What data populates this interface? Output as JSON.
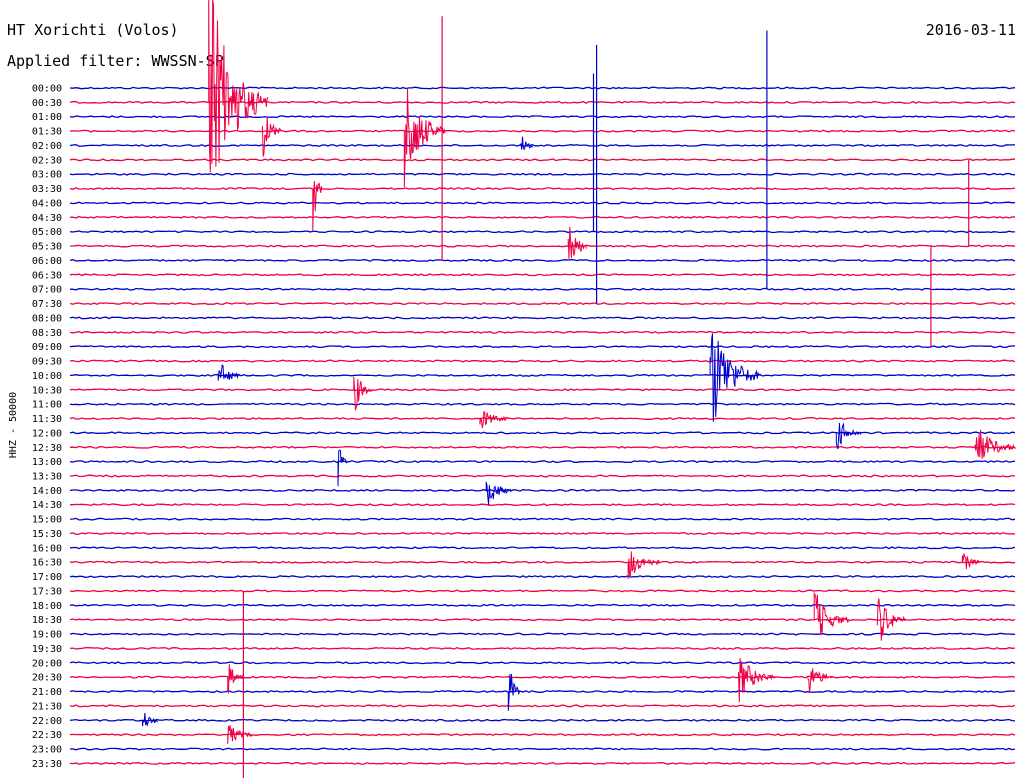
{
  "header": {
    "station": "HT Xorichti (Volos)",
    "filter": "Applied filter: WWSSN-SP",
    "date": "2016-03-11"
  },
  "colors": {
    "trace_a": "#0000cc",
    "trace_b": "#ee0044",
    "background": "#ffffff",
    "text": "#000000"
  },
  "chart_data": {
    "type": "line",
    "title": "HT Xorichti (Volos)",
    "subtitle": "Applied filter: WWSSN-SP",
    "ylabel": "HHZ - 50000",
    "xlabel": "",
    "grid": false,
    "legend": "none",
    "rows": [
      "00:00",
      "00:30",
      "01:00",
      "01:30",
      "02:00",
      "02:30",
      "03:00",
      "03:30",
      "04:00",
      "04:30",
      "05:00",
      "05:30",
      "06:00",
      "06:30",
      "07:00",
      "07:30",
      "08:00",
      "08:30",
      "09:00",
      "09:30",
      "10:00",
      "10:30",
      "11:00",
      "11:30",
      "12:00",
      "12:30",
      "13:00",
      "13:30",
      "14:00",
      "14:30",
      "15:00",
      "15:30",
      "16:00",
      "16:30",
      "17:00",
      "17:30",
      "18:00",
      "18:30",
      "19:00",
      "19:30",
      "20:00",
      "20:30",
      "21:00",
      "21:30",
      "22:00",
      "22:30",
      "23:00",
      "23:30"
    ],
    "x_range_minutes": [
      0,
      30
    ],
    "events": [
      {
        "row": 1,
        "minute": 4.4,
        "amp": 20,
        "dur": 1.9
      },
      {
        "row": 3,
        "minute": 10.6,
        "amp": 10,
        "dur": 1.3
      },
      {
        "row": 3,
        "minute": 6.1,
        "amp": 5,
        "dur": 0.6
      },
      {
        "row": 4,
        "minute": 14.3,
        "amp": 3,
        "dur": 0.4
      },
      {
        "row": 7,
        "minute": 7.7,
        "amp": 8,
        "dur": 0.3
      },
      {
        "row": 11,
        "minute": 15.8,
        "amp": 6,
        "dur": 0.6
      },
      {
        "row": 20,
        "minute": 4.7,
        "amp": 3,
        "dur": 0.7
      },
      {
        "row": 20,
        "minute": 20.3,
        "amp": 10,
        "dur": 1.6
      },
      {
        "row": 21,
        "minute": 9.0,
        "amp": 4,
        "dur": 0.6
      },
      {
        "row": 23,
        "minute": 13.0,
        "amp": 2,
        "dur": 0.9
      },
      {
        "row": 24,
        "minute": 24.3,
        "amp": 3,
        "dur": 0.8
      },
      {
        "row": 25,
        "minute": 28.7,
        "amp": 4,
        "dur": 1.3
      },
      {
        "row": 26,
        "minute": 8.5,
        "amp": 4,
        "dur": 0.3
      },
      {
        "row": 28,
        "minute": 13.2,
        "amp": 3,
        "dur": 0.8
      },
      {
        "row": 33,
        "minute": 17.7,
        "amp": 3,
        "dur": 1.0
      },
      {
        "row": 33,
        "minute": 28.3,
        "amp": 2,
        "dur": 0.6
      },
      {
        "row": 37,
        "minute": 23.6,
        "amp": 5,
        "dur": 1.1
      },
      {
        "row": 37,
        "minute": 25.6,
        "amp": 5,
        "dur": 0.9
      },
      {
        "row": 41,
        "minute": 5.0,
        "amp": 3,
        "dur": 0.5
      },
      {
        "row": 41,
        "minute": 21.2,
        "amp": 4,
        "dur": 1.2
      },
      {
        "row": 41,
        "minute": 23.4,
        "amp": 3,
        "dur": 0.8
      },
      {
        "row": 42,
        "minute": 13.9,
        "amp": 6,
        "dur": 0.4
      },
      {
        "row": 44,
        "minute": 2.3,
        "amp": 2,
        "dur": 0.5
      },
      {
        "row": 45,
        "minute": 5.0,
        "amp": 2,
        "dur": 0.8
      }
    ],
    "spikes": [
      {
        "row": 5,
        "minute": 11.8,
        "up": 10,
        "down": 7
      },
      {
        "row": 6,
        "minute": 16.6,
        "up": 7,
        "down": 4
      },
      {
        "row": 6,
        "minute": 16.7,
        "up": 9,
        "down": 9
      },
      {
        "row": 2,
        "minute": 22.1,
        "up": 6,
        "down": 12
      },
      {
        "row": 7,
        "minute": 28.5,
        "up": 2,
        "down": 4
      },
      {
        "row": 13,
        "minute": 27.3,
        "up": 2,
        "down": 5
      },
      {
        "row": 45,
        "minute": 5.5,
        "up": 10,
        "down": 5
      }
    ]
  }
}
